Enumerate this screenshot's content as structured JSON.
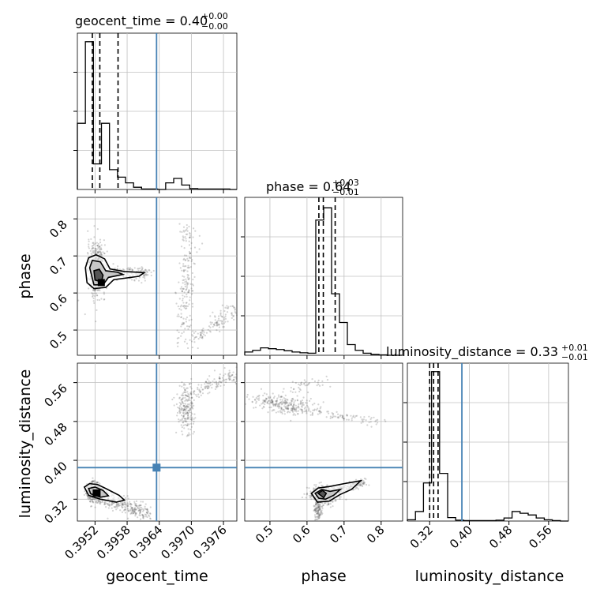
{
  "chart_data": {
    "type": "corner",
    "parameters": [
      "geocent_time",
      "phase",
      "luminosity_distance"
    ],
    "colors": {
      "truth": "#4682b4",
      "hist": "#000000",
      "grid": "#c0c0c0",
      "scatter": "#555555"
    },
    "grid": true,
    "axes": {
      "geocent_time": {
        "label": "geocent_time",
        "range": [
          0.39487,
          0.39785
        ],
        "ticks": [
          0.3952,
          0.3958,
          0.3964,
          0.397,
          0.3976
        ],
        "tick_labels": [
          "0.3952",
          "0.3958",
          "0.3964",
          "0.3970",
          "0.3976"
        ]
      },
      "phase": {
        "label": "phase",
        "range": [
          0.432,
          0.858
        ],
        "ticks": [
          0.5,
          0.6,
          0.7,
          0.8
        ],
        "tick_labels": [
          "0.5",
          "0.6",
          "0.7",
          "0.8"
        ]
      },
      "luminosity_distance": {
        "label": "luminosity_distance",
        "range": [
          0.275,
          0.6
        ],
        "ticks": [
          0.32,
          0.4,
          0.48,
          0.56
        ],
        "tick_labels": [
          "0.32",
          "0.40",
          "0.48",
          "0.56"
        ]
      }
    },
    "titles": {
      "geocent_time": {
        "main": "geocent_time = 0.40",
        "plus": "+0.00",
        "minus": "−0.00"
      },
      "phase": {
        "main": "phase = 0.64",
        "plus": "+0.03",
        "minus": "−0.01"
      },
      "luminosity_distance": {
        "main": "luminosity_distance = 0.33",
        "plus": "+0.01",
        "minus": "−0.01"
      }
    },
    "truths": {
      "geocent_time": 0.39635,
      "phase": null,
      "luminosity_distance": 0.385
    },
    "quantiles": {
      "geocent_time": [
        0.39515,
        0.39529,
        0.39563
      ],
      "phase": [
        0.632,
        0.644,
        0.676
      ],
      "luminosity_distance": [
        0.32,
        0.328,
        0.337
      ]
    },
    "histograms": {
      "geocent_time": {
        "edges": [
          0.39487,
          0.39502,
          0.39517,
          0.39532,
          0.39547,
          0.39562,
          0.39577,
          0.39592,
          0.39607,
          0.39622,
          0.39637,
          0.39652,
          0.39667,
          0.39682,
          0.39697,
          0.39712,
          0.39727,
          0.39742,
          0.39757,
          0.39772,
          0.39785
        ],
        "counts": [
          150,
          335,
          58,
          150,
          45,
          28,
          15,
          5,
          1,
          1,
          0,
          15,
          25,
          10,
          2,
          1,
          1,
          1,
          1,
          0
        ],
        "ymax": 340
      },
      "phase": {
        "edges": [
          0.432,
          0.4533,
          0.4746,
          0.4959,
          0.5172,
          0.5385,
          0.5598,
          0.5811,
          0.6024,
          0.6237,
          0.645,
          0.6663,
          0.6876,
          0.7089,
          0.7302,
          0.7515,
          0.7728,
          0.7941,
          0.8154,
          0.8367,
          0.858
        ],
        "counts": [
          8,
          12,
          18,
          16,
          14,
          11,
          8,
          6,
          5,
          330,
          360,
          150,
          80,
          26,
          12,
          5,
          2,
          1,
          0,
          0
        ],
        "ymax": 370
      },
      "luminosity_distance": {
        "edges": [
          0.275,
          0.2913,
          0.3075,
          0.3238,
          0.34,
          0.3563,
          0.3725,
          0.3888,
          0.405,
          0.4213,
          0.4375,
          0.4538,
          0.47,
          0.4863,
          0.5025,
          0.5188,
          0.535,
          0.5513,
          0.5675,
          0.5838,
          0.6
        ],
        "counts": [
          3,
          22,
          88,
          345,
          110,
          8,
          2,
          1,
          1,
          1,
          1,
          2,
          7,
          22,
          18,
          14,
          7,
          3,
          1,
          0
        ],
        "ymax": 350
      }
    }
  }
}
